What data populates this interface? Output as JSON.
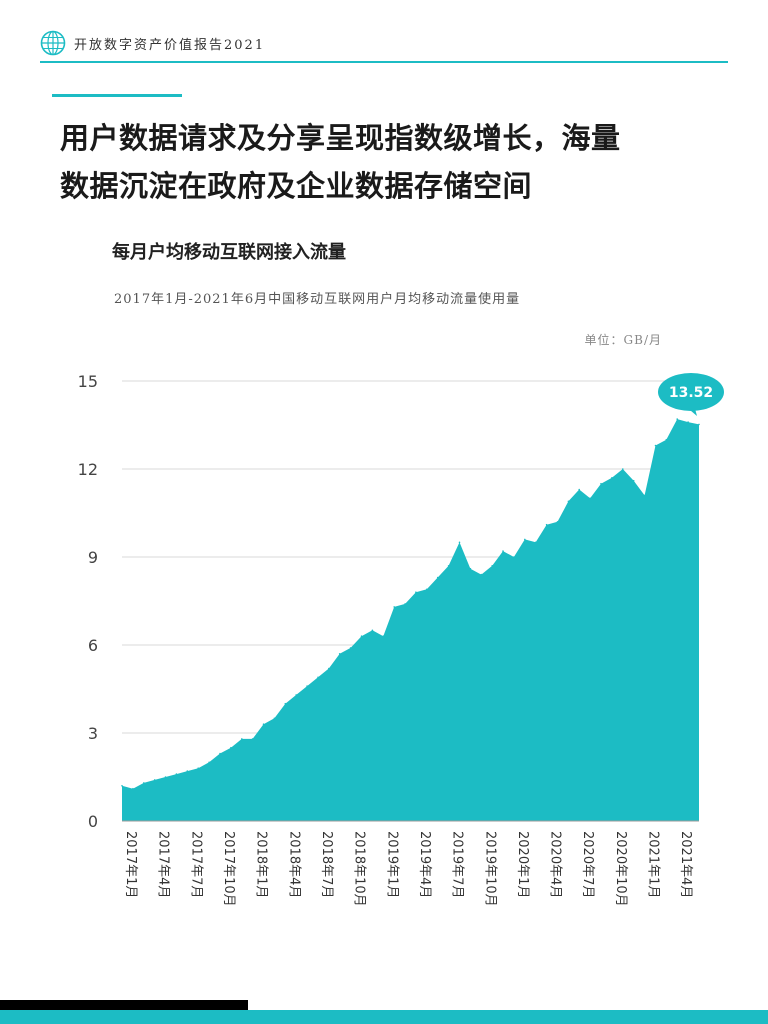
{
  "header": {
    "report_title": "开放数字资产价值报告2021"
  },
  "headline": {
    "line1": "用户数据请求及分享呈现指数级增长，海量",
    "line2": "数据沉淀在政府及企业数据存储空间"
  },
  "chart_data": {
    "type": "area",
    "title": "每月户均移动互联网接入流量",
    "subtitle": "2017年1月-2021年6月中国移动互联网用户月均移动流量使用量",
    "unit": "单位：GB/月",
    "ylim": [
      0,
      15
    ],
    "yticks": [
      0,
      3,
      6,
      9,
      12,
      15
    ],
    "grid": true,
    "color": "#1cbcc4",
    "x": [
      "2017年1月",
      "2017年2月",
      "2017年3月",
      "2017年4月",
      "2017年5月",
      "2017年6月",
      "2017年7月",
      "2017年8月",
      "2017年9月",
      "2017年10月",
      "2017年11月",
      "2017年12月",
      "2018年1月",
      "2018年2月",
      "2018年3月",
      "2018年4月",
      "2018年5月",
      "2018年6月",
      "2018年7月",
      "2018年8月",
      "2018年9月",
      "2018年10月",
      "2018年11月",
      "2018年12月",
      "2019年1月",
      "2019年2月",
      "2019年3月",
      "2019年4月",
      "2019年5月",
      "2019年6月",
      "2019年7月",
      "2019年8月",
      "2019年9月",
      "2019年10月",
      "2019年11月",
      "2019年12月",
      "2020年1月",
      "2020年2月",
      "2020年3月",
      "2020年4月",
      "2020年5月",
      "2020年6月",
      "2020年7月",
      "2020年8月",
      "2020年9月",
      "2020年10月",
      "2020年11月",
      "2020年12月",
      "2021年1月",
      "2021年2月",
      "2021年3月",
      "2021年4月",
      "2021年5月",
      "2021年6月"
    ],
    "xtick_labels": [
      "2017年1月",
      "2017年4月",
      "2017年7月",
      "2017年10月",
      "2018年1月",
      "2018年4月",
      "2018年7月",
      "2018年10月",
      "2019年1月",
      "2019年4月",
      "2019年7月",
      "2019年10月",
      "2020年1月",
      "2020年4月",
      "2020年7月",
      "2020年10月",
      "2021年1月",
      "2021年4月"
    ],
    "values": [
      1.2,
      1.1,
      1.3,
      1.4,
      1.5,
      1.6,
      1.7,
      1.8,
      2.0,
      2.3,
      2.5,
      2.8,
      2.8,
      3.3,
      3.5,
      4.0,
      4.3,
      4.6,
      4.9,
      5.2,
      5.7,
      5.9,
      6.3,
      6.5,
      6.3,
      7.3,
      7.4,
      7.8,
      7.9,
      8.3,
      8.7,
      9.5,
      8.6,
      8.4,
      8.7,
      9.2,
      9.0,
      9.6,
      9.5,
      10.1,
      10.2,
      10.9,
      11.3,
      11.0,
      11.5,
      11.7,
      12.0,
      11.6,
      11.1,
      12.8,
      13.0,
      13.7,
      13.6,
      13.52
    ],
    "annotation": {
      "label": "13.52",
      "value": 13.52
    }
  }
}
